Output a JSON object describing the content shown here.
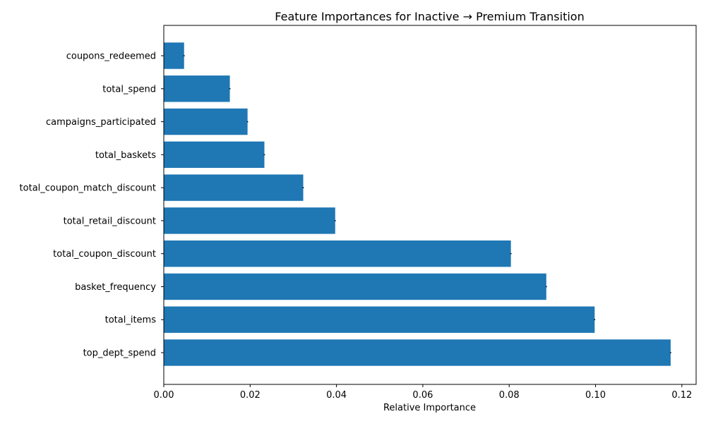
{
  "chart_data": {
    "type": "bar",
    "orientation": "horizontal",
    "title": "Feature Importances for Inactive → Premium Transition",
    "xlabel": "Relative Importance",
    "ylabel": "",
    "xlim": [
      0,
      0.1233
    ],
    "xticks": [
      0.0,
      0.02,
      0.04,
      0.06,
      0.08,
      0.1,
      0.12
    ],
    "xtick_labels": [
      "0.00",
      "0.02",
      "0.04",
      "0.06",
      "0.08",
      "0.10",
      "0.12"
    ],
    "grid": false,
    "legend": "none",
    "categories": [
      "coupons_redeemed",
      "total_spend",
      "campaigns_participated",
      "total_baskets",
      "total_coupon_match_discount",
      "total_retail_discount",
      "total_coupon_discount",
      "basket_frequency",
      "total_items",
      "top_dept_spend"
    ],
    "values": [
      0.0047,
      0.0153,
      0.0194,
      0.0233,
      0.0323,
      0.0397,
      0.0804,
      0.0886,
      0.0998,
      0.1174
    ],
    "bar_color": "#1f77b4",
    "error_bar_color": "#000000"
  }
}
